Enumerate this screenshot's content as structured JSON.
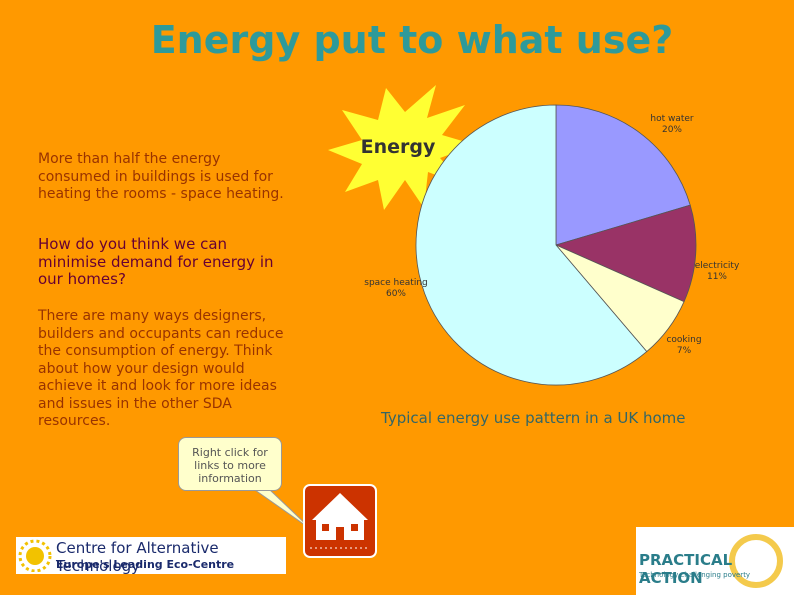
{
  "title": "Energy put to what use?",
  "paragraphs": [
    "More than half the energy consumed in buildings is used for heating the rooms - space heating.",
    "How do you think we can minimise demand for energy in our homes?",
    "There are many ways designers, builders and occupants can reduce the consumption of energy. Think about how your design would achieve it and look for more ideas and issues in the other SDA resources."
  ],
  "callout": "Right click for links to more information",
  "star_label": "Energy",
  "chart_data": {
    "type": "pie",
    "title": "Typical energy use pattern in a UK home",
    "categories": [
      "hot water",
      "electricity",
      "cooking",
      "space heating"
    ],
    "values": [
      20,
      11,
      7,
      60
    ],
    "value_labels": [
      "20%",
      "11%",
      "7%",
      "60%"
    ],
    "colors": [
      "#9999ff",
      "#993366",
      "#ffffcc",
      "#ccffff"
    ]
  },
  "logos": {
    "cat_name": "Centre for Alternative Technology",
    "cat_tagline": "Europe's Leading Eco-Centre",
    "pa_name": "PRACTICAL ACTION",
    "pa_tagline": "Technology challenging poverty"
  }
}
